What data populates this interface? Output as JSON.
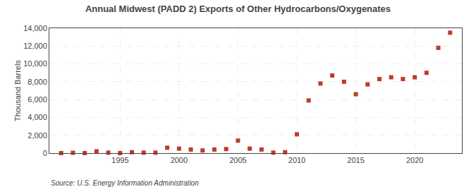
{
  "chart_data": {
    "type": "scatter",
    "title": "Annual Midwest (PADD 2) Exports of Other Hydrocarbons/Oxygenates",
    "ylabel": "Thousand Barrels",
    "annotations": [
      "Source: U.S. Energy Information Administration"
    ],
    "x": [
      1990,
      1991,
      1992,
      1993,
      1994,
      1995,
      1996,
      1997,
      1998,
      1999,
      2000,
      2001,
      2002,
      2003,
      2004,
      2005,
      2006,
      2007,
      2008,
      2009,
      2010,
      2011,
      2012,
      2013,
      2014,
      2015,
      2016,
      2017,
      2018,
      2019,
      2020,
      2021,
      2022,
      2023
    ],
    "values": [
      0,
      30,
      0,
      200,
      50,
      0,
      100,
      50,
      50,
      600,
      500,
      400,
      300,
      400,
      450,
      1400,
      500,
      400,
      50,
      100,
      2100,
      5900,
      7800,
      8700,
      8000,
      6600,
      7700,
      8300,
      8500,
      8300,
      8500,
      9000,
      11800,
      13500
    ],
    "color": "#c0392b",
    "marker": "square",
    "xlim": [
      1989,
      2024
    ],
    "xticks": [
      1995,
      2000,
      2005,
      2010,
      2015,
      2020
    ],
    "ylim": [
      0,
      14000
    ],
    "yticks": [
      0,
      {
        "value": 2000,
        "label": "2,000"
      },
      {
        "value": 4000,
        "label": "4,000"
      },
      {
        "value": 6000,
        "label": "6,000"
      },
      {
        "value": 8000,
        "label": "8,000"
      },
      {
        "value": 10000,
        "label": "10,000"
      },
      {
        "value": 12000,
        "label": "12,000"
      },
      {
        "value": 14000,
        "label": "14,000"
      }
    ],
    "grid": true
  }
}
